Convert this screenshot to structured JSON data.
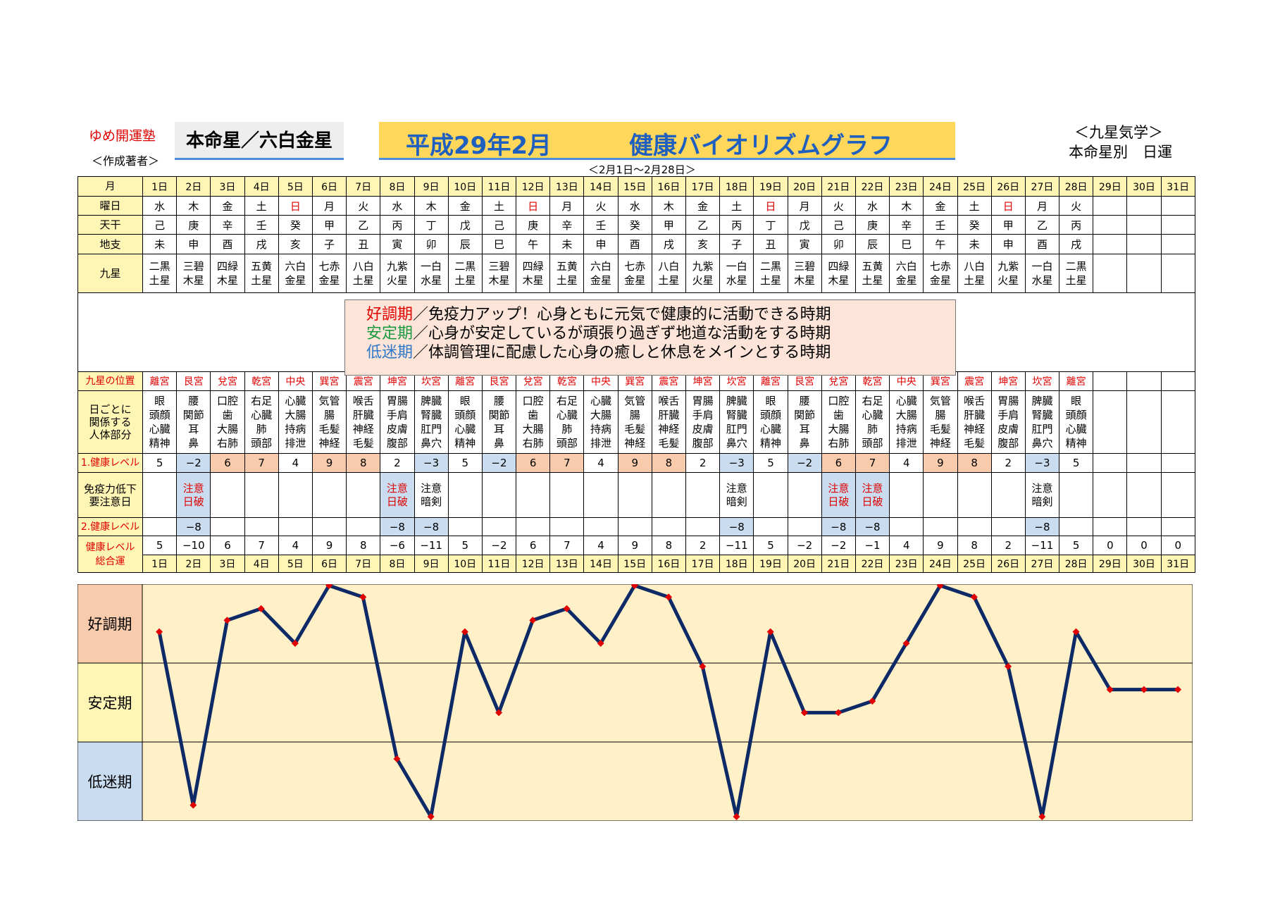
{
  "header": {
    "org": "ゆめ開運塾",
    "author": "＜作成著者＞",
    "honmei": "本命星／六白金星",
    "title_date": "平成29年2月",
    "title_main": "健康バイオリズムグラフ",
    "period": "＜2月1日～2月28日＞",
    "kyusei": "＜九星気学＞",
    "daily": "本命星別　日運"
  },
  "labels": {
    "month": "月",
    "weekday": "曜日",
    "tenkan": "天干",
    "chishi": "地支",
    "kyusei": "九星",
    "position": "九星の位置",
    "body": "日ごとに\n関係する\n人体部分",
    "level1": "1.健康レベル",
    "caution": "免疫力低下\n要注意日",
    "level2": "2.健康レベル",
    "total": "健康レベル\n総合運"
  },
  "days": [
    "1日",
    "2日",
    "3日",
    "4日",
    "5日",
    "6日",
    "7日",
    "8日",
    "9日",
    "10日",
    "11日",
    "12日",
    "13日",
    "14日",
    "15日",
    "16日",
    "17日",
    "18日",
    "19日",
    "20日",
    "21日",
    "22日",
    "23日",
    "24日",
    "25日",
    "26日",
    "27日",
    "28日",
    "29日",
    "30日",
    "31日"
  ],
  "weekdays": [
    "水",
    "木",
    "金",
    "土",
    "日",
    "月",
    "火",
    "水",
    "木",
    "金",
    "土",
    "日",
    "月",
    "火",
    "水",
    "木",
    "金",
    "土",
    "日",
    "月",
    "火",
    "水",
    "木",
    "金",
    "土",
    "日",
    "月",
    "火",
    "",
    "",
    ""
  ],
  "tenkan": [
    "己",
    "庚",
    "辛",
    "壬",
    "癸",
    "甲",
    "乙",
    "丙",
    "丁",
    "戊",
    "己",
    "庚",
    "辛",
    "壬",
    "癸",
    "甲",
    "乙",
    "丙",
    "丁",
    "戊",
    "己",
    "庚",
    "辛",
    "壬",
    "癸",
    "甲",
    "乙",
    "丙",
    "",
    "",
    ""
  ],
  "chishi": [
    "未",
    "申",
    "酉",
    "戌",
    "亥",
    "子",
    "丑",
    "寅",
    "卯",
    "辰",
    "巳",
    "午",
    "未",
    "申",
    "酉",
    "戌",
    "亥",
    "子",
    "丑",
    "寅",
    "卯",
    "辰",
    "巳",
    "午",
    "未",
    "申",
    "酉",
    "戌",
    "",
    "",
    ""
  ],
  "kyusei": [
    "二黒\n土星",
    "三碧\n木星",
    "四緑\n木星",
    "五黄\n土星",
    "六白\n金星",
    "七赤\n金星",
    "八白\n土星",
    "九紫\n火星",
    "一白\n水星",
    "二黒\n土星",
    "三碧\n木星",
    "四緑\n木星",
    "五黄\n土星",
    "六白\n金星",
    "七赤\n金星",
    "八白\n土星",
    "九紫\n火星",
    "一白\n水星",
    "二黒\n土星",
    "三碧\n木星",
    "四緑\n木星",
    "五黄\n土星",
    "六白\n金星",
    "七赤\n金星",
    "八白\n土星",
    "九紫\n火星",
    "一白\n水星",
    "二黒\n土星",
    "",
    "",
    ""
  ],
  "legend": [
    {
      "key": "好調期",
      "text": "／免疫力アップ！心身ともに元気で健康的に活動できる時期"
    },
    {
      "key": "安定期",
      "text": "／心身が安定しているが頑張り過ぎず地道な活動をする時期"
    },
    {
      "key": "低迷期",
      "text": "／体調管理に配慮した心身の癒しと休息をメインとする時期"
    }
  ],
  "positions": [
    "離宮",
    "艮宮",
    "兌宮",
    "乾宮",
    "中央",
    "巽宮",
    "震宮",
    "坤宮",
    "坎宮",
    "離宮",
    "艮宮",
    "兌宮",
    "乾宮",
    "中央",
    "巽宮",
    "震宮",
    "坤宮",
    "坎宮",
    "離宮",
    "艮宮",
    "兌宮",
    "乾宮",
    "中央",
    "巽宮",
    "震宮",
    "坤宮",
    "坎宮",
    "離宮",
    "",
    "",
    ""
  ],
  "body_parts": [
    "眼\n頭顔\n心臓\n精神",
    "腰\n関節\n耳\n鼻",
    "口腔\n歯\n大腸\n右肺",
    "右足\n心臓\n肺\n頭部",
    "心臓\n大腸\n持病\n排泄",
    "気管\n腸\n毛髪\n神経",
    "喉舌\n肝臓\n神経\n毛髪",
    "胃腸\n手肩\n皮膚\n腹部",
    "脾臓\n腎臓\n肛門\n鼻穴",
    "眼\n頭顔\n心臓\n精神",
    "腰\n関節\n耳\n鼻",
    "口腔\n歯\n大腸\n右肺",
    "右足\n心臓\n肺\n頭部",
    "心臓\n大腸\n持病\n排泄",
    "気管\n腸\n毛髪\n神経",
    "喉舌\n肝臓\n神経\n毛髪",
    "胃腸\n手肩\n皮膚\n腹部",
    "脾臓\n腎臓\n肛門\n鼻穴",
    "眼\n頭顔\n心臓\n精神",
    "腰\n関節\n耳\n鼻",
    "口腔\n歯\n大腸\n右肺",
    "右足\n心臓\n肺\n頭部",
    "心臓\n大腸\n持病\n排泄",
    "気管\n腸\n毛髪\n神経",
    "喉舌\n肝臓\n神経\n毛髪",
    "胃腸\n手肩\n皮膚\n腹部",
    "脾臓\n腎臓\n肛門\n鼻穴",
    "眼\n頭顔\n心臓\n精神",
    "",
    "",
    ""
  ],
  "level1": [
    "5",
    "−2",
    "6",
    "7",
    "4",
    "9",
    "8",
    "2",
    "−3",
    "5",
    "−2",
    "6",
    "7",
    "4",
    "9",
    "8",
    "2",
    "−3",
    "5",
    "−2",
    "6",
    "7",
    "4",
    "9",
    "8",
    "2",
    "−3",
    "5",
    "",
    "",
    ""
  ],
  "caution": [
    "",
    "注意\n日破",
    "",
    "",
    "",
    "",
    "",
    "注意\n日破",
    "注意\n暗剣",
    "",
    "",
    "",
    "",
    "",
    "",
    "",
    "",
    "注意\n暗剣",
    "",
    "",
    "注意\n日破",
    "注意\n日破",
    "",
    "",
    "",
    "",
    "注意\n暗剣",
    "",
    "",
    "",
    ""
  ],
  "level2": [
    "",
    "−8",
    "",
    "",
    "",
    "",
    "",
    "−8",
    "−8",
    "",
    "",
    "",
    "",
    "",
    "",
    "",
    "",
    "−8",
    "",
    "",
    "−8",
    "−8",
    "",
    "",
    "",
    "",
    "−8",
    "",
    "",
    "",
    ""
  ],
  "total": [
    "5",
    "−10",
    "6",
    "7",
    "4",
    "9",
    "8",
    "−6",
    "−11",
    "5",
    "−2",
    "6",
    "7",
    "4",
    "9",
    "8",
    "2",
    "−11",
    "5",
    "−2",
    "−2",
    "−1",
    "4",
    "9",
    "8",
    "2",
    "−11",
    "5",
    "0",
    "0",
    "0"
  ],
  "colors": {
    "line": "#0d2a66",
    "marker": "#e00000",
    "high": "#f8cbad",
    "low": "#c9dcf0",
    "graph_bg": "#fff0c8",
    "label_bg": "#fff5b4"
  },
  "chart_data": {
    "type": "line",
    "x": [
      "1日",
      "2日",
      "3日",
      "4日",
      "5日",
      "6日",
      "7日",
      "8日",
      "9日",
      "10日",
      "11日",
      "12日",
      "13日",
      "14日",
      "15日",
      "16日",
      "17日",
      "18日",
      "19日",
      "20日",
      "21日",
      "22日",
      "23日",
      "24日",
      "25日",
      "26日",
      "27日",
      "28日",
      "29日",
      "30日",
      "31日"
    ],
    "series": [
      {
        "values": [
          5,
          -10,
          6,
          7,
          4,
          9,
          8,
          -6,
          -11,
          5,
          -2,
          6,
          7,
          4,
          9,
          8,
          2,
          -11,
          5,
          -2,
          -2,
          -1,
          4,
          9,
          8,
          2,
          -11,
          5,
          0,
          0,
          0
        ]
      }
    ],
    "bands": [
      "好調期",
      "安定期",
      "低迷期"
    ],
    "ylim": [
      -11,
      9
    ],
    "grid": true
  }
}
